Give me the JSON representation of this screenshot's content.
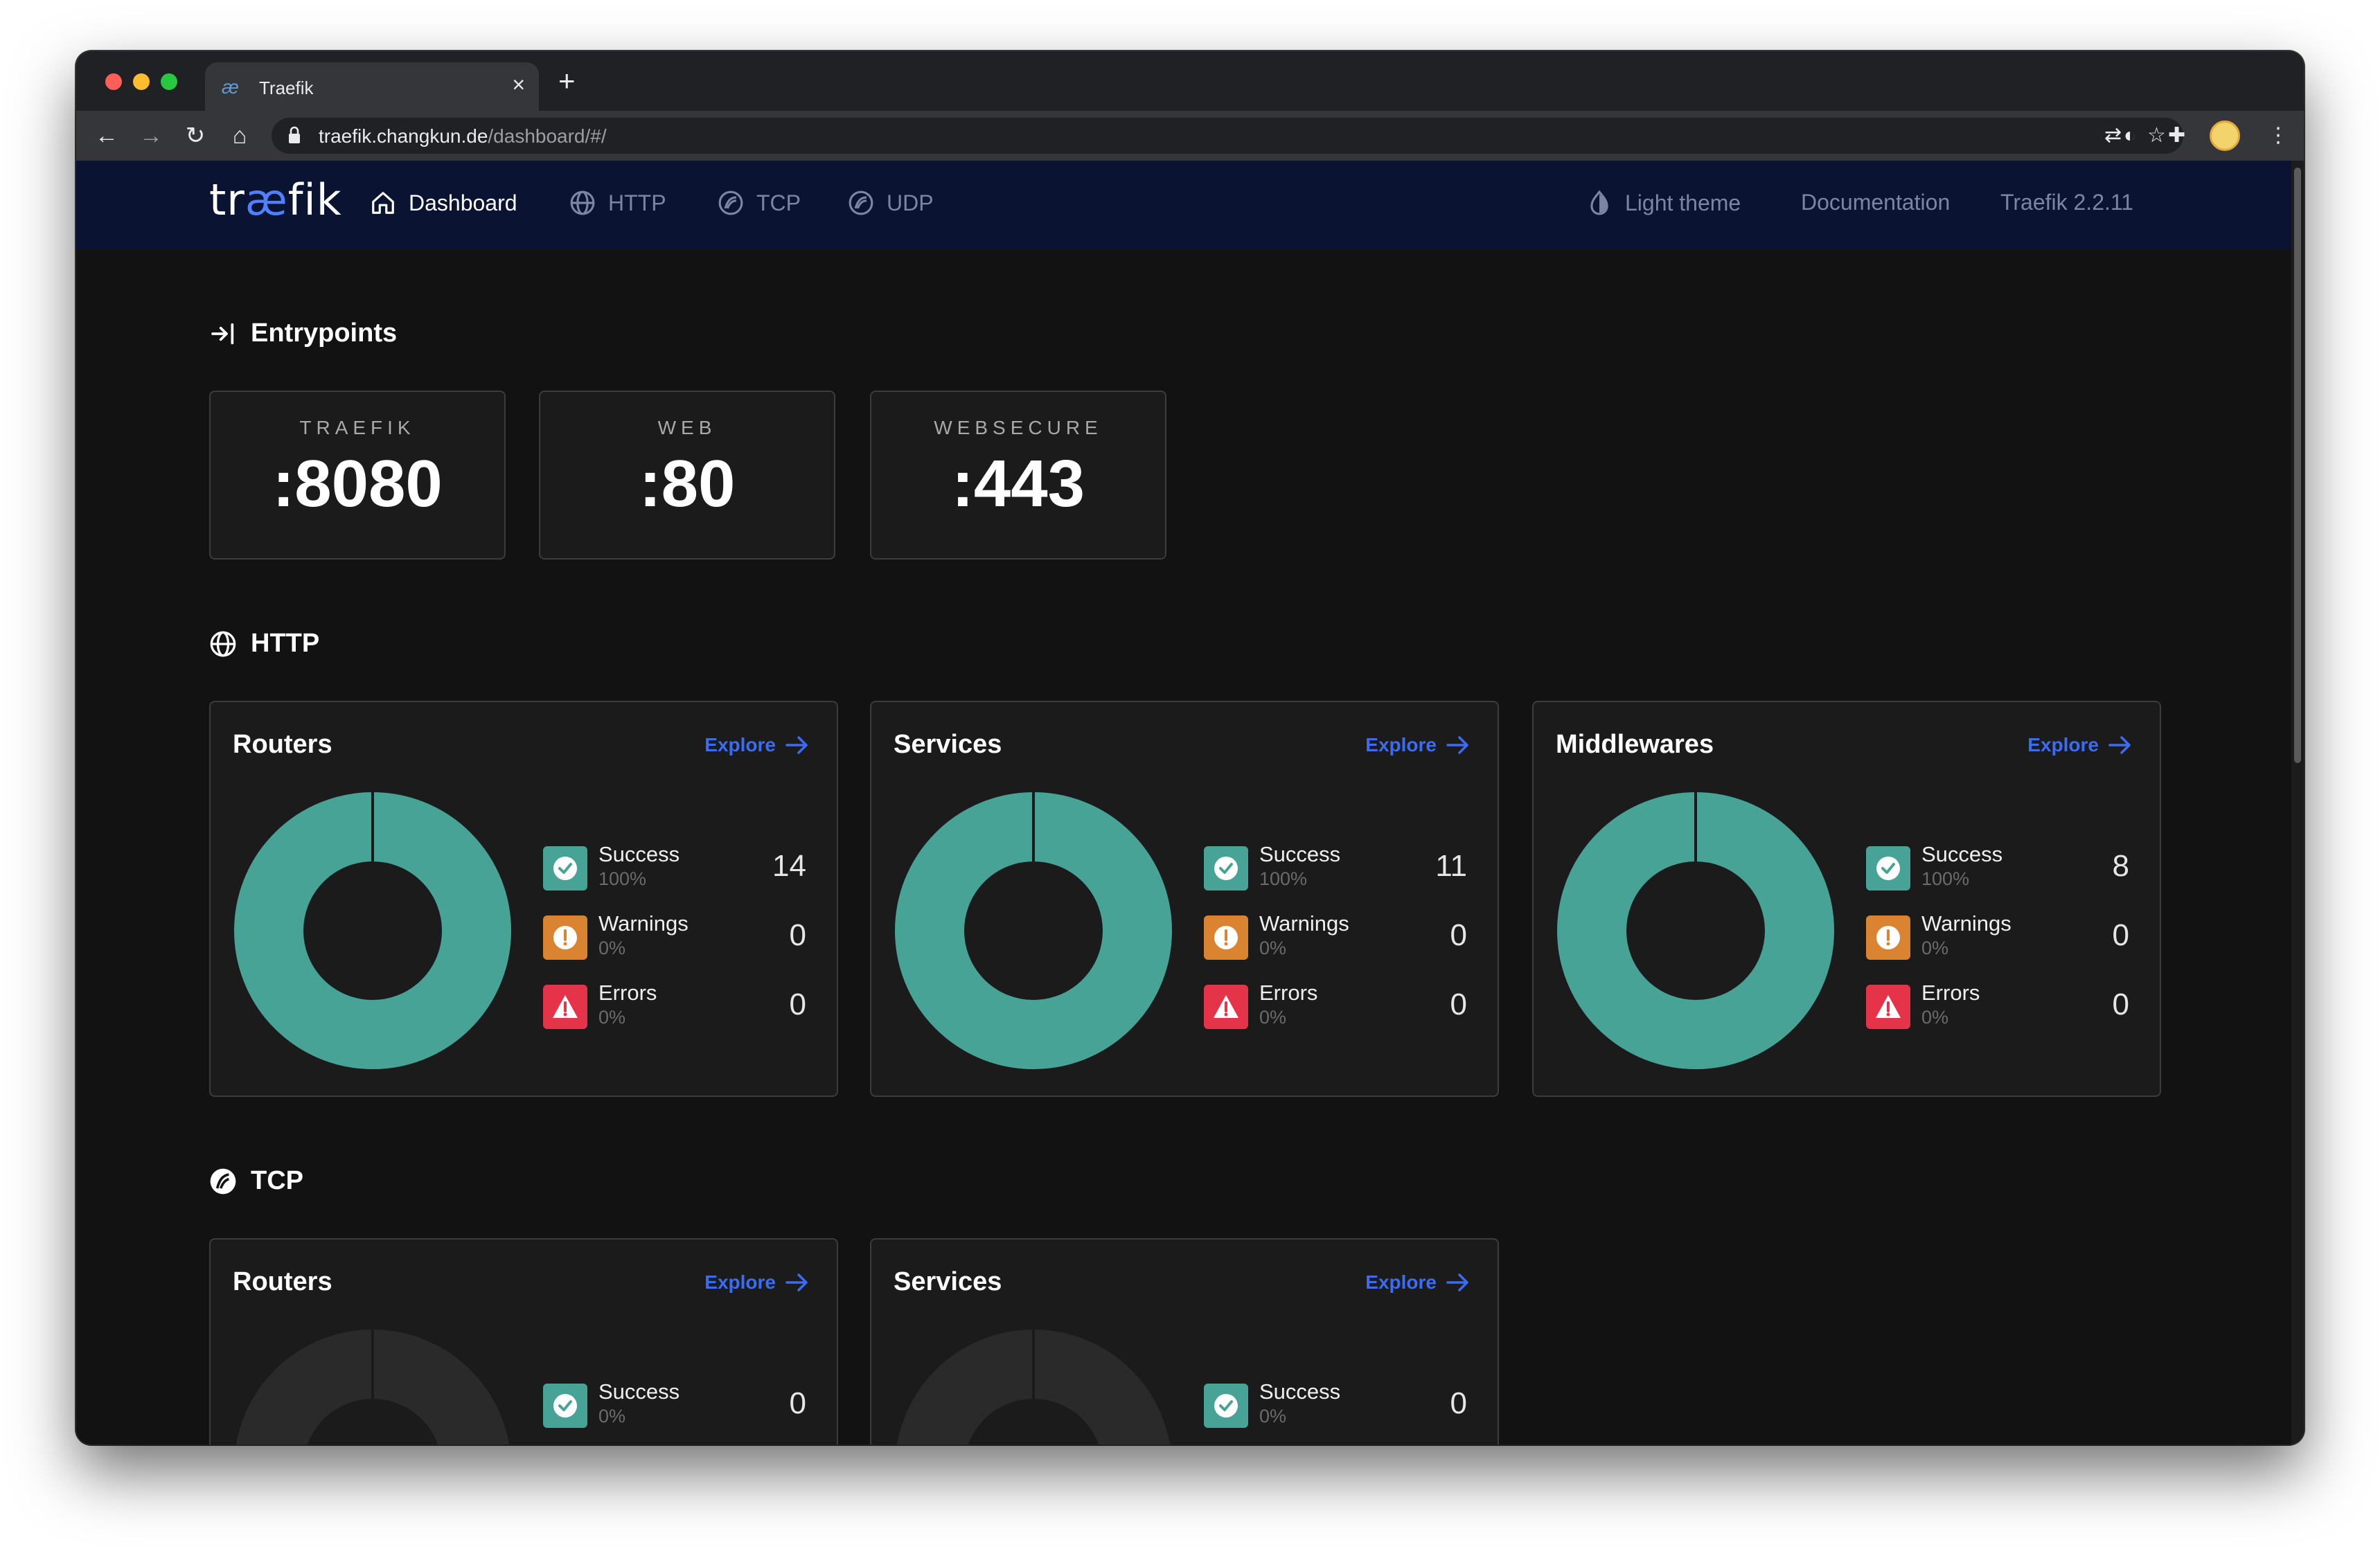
{
  "browser": {
    "tab_title": "Traefik",
    "tab_favicon": "æ",
    "url_host": "traefik.changkun.de",
    "url_path": "/dashboard/#/"
  },
  "nav": {
    "logo_pre": "tr",
    "logo_ae": "æ",
    "logo_post": "fik",
    "items": [
      {
        "label": "Dashboard",
        "icon": "home-icon",
        "active": true
      },
      {
        "label": "HTTP",
        "icon": "globe-icon",
        "active": false
      },
      {
        "label": "TCP",
        "icon": "tcp-icon",
        "active": false
      },
      {
        "label": "UDP",
        "icon": "udp-icon",
        "active": false
      }
    ],
    "theme_label": "Light theme",
    "docs_label": "Documentation",
    "version_label": "Traefik 2.2.11"
  },
  "entrypoints": {
    "title": "Entrypoints",
    "items": [
      {
        "name": "TRAEFIK",
        "port": ":8080"
      },
      {
        "name": "WEB",
        "port": ":80"
      },
      {
        "name": "WEBSECURE",
        "port": ":443"
      }
    ]
  },
  "http": {
    "title": "HTTP",
    "cards": [
      {
        "title": "Routers",
        "explore": "Explore",
        "stats": [
          {
            "label": "Success",
            "pct": "100%",
            "count": "14"
          },
          {
            "label": "Warnings",
            "pct": "0%",
            "count": "0"
          },
          {
            "label": "Errors",
            "pct": "0%",
            "count": "0"
          }
        ]
      },
      {
        "title": "Services",
        "explore": "Explore",
        "stats": [
          {
            "label": "Success",
            "pct": "100%",
            "count": "11"
          },
          {
            "label": "Warnings",
            "pct": "0%",
            "count": "0"
          },
          {
            "label": "Errors",
            "pct": "0%",
            "count": "0"
          }
        ]
      },
      {
        "title": "Middlewares",
        "explore": "Explore",
        "stats": [
          {
            "label": "Success",
            "pct": "100%",
            "count": "8"
          },
          {
            "label": "Warnings",
            "pct": "0%",
            "count": "0"
          },
          {
            "label": "Errors",
            "pct": "0%",
            "count": "0"
          }
        ]
      }
    ]
  },
  "tcp": {
    "title": "TCP",
    "cards": [
      {
        "title": "Routers",
        "explore": "Explore",
        "stats": [
          {
            "label": "Success",
            "pct": "0%",
            "count": "0"
          }
        ]
      },
      {
        "title": "Services",
        "explore": "Explore",
        "stats": [
          {
            "label": "Success",
            "pct": "0%",
            "count": "0"
          }
        ]
      }
    ]
  },
  "colors": {
    "success": "#47a396",
    "warning": "#da8431",
    "error": "#e5344a",
    "accent": "#3b6cf5",
    "navbar": "#0a1432",
    "empty_donut": "#2a2a2a"
  }
}
